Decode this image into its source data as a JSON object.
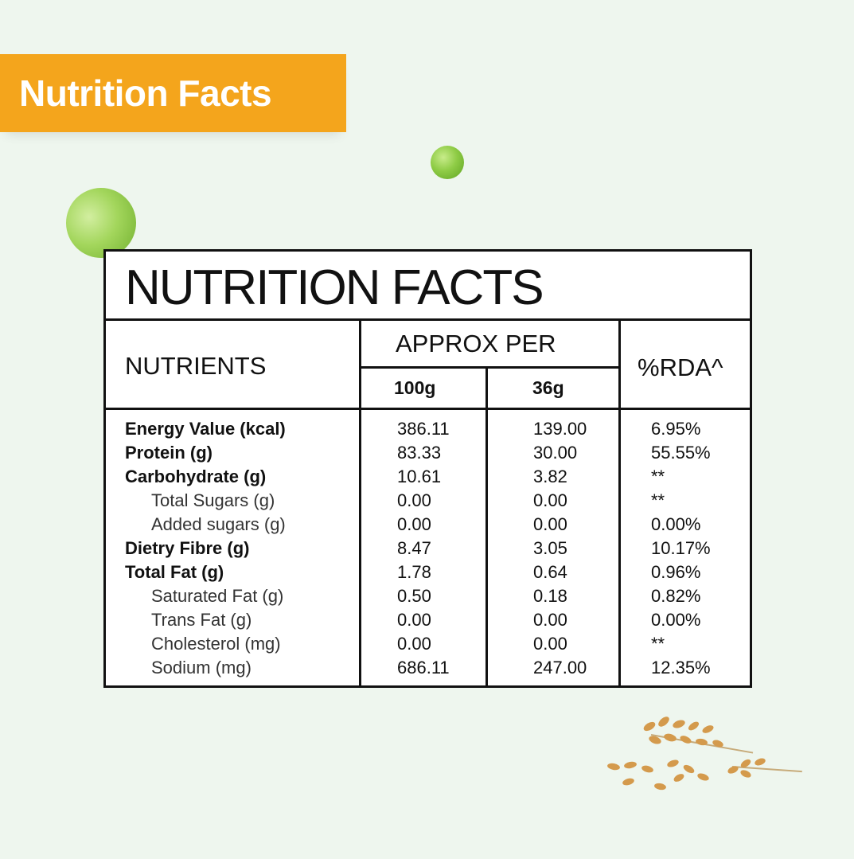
{
  "banner": {
    "title": "Nutrition Facts"
  },
  "table": {
    "heading": "NUTRITION FACTS",
    "col_nutrients": "NUTRIENTS",
    "col_approx": "APPROX PER",
    "col_100g": "100g",
    "col_36g": "36g",
    "col_rda": "%RDA^",
    "rows": [
      {
        "name": "Energy Value (kcal)",
        "per100": "386.11",
        "per36": "139.00",
        "rda": "6.95%"
      },
      {
        "name": "Protein (g)",
        "per100": "83.33",
        "per36": "30.00",
        "rda": "55.55%"
      },
      {
        "name": "Carbohydrate (g)",
        "per100": "10.61",
        "per36": "3.82",
        "rda": "**"
      },
      {
        "name": "Total Sugars (g)",
        "per100": "0.00",
        "per36": "0.00",
        "rda": "**"
      },
      {
        "name": "Added sugars (g)",
        "per100": "0.00",
        "per36": "0.00",
        "rda": "0.00%"
      },
      {
        "name": "Dietry Fibre (g)",
        "per100": "8.47",
        "per36": "3.05",
        "rda": "10.17%"
      },
      {
        "name": "Total Fat (g)",
        "per100": "1.78",
        "per36": "0.64",
        "rda": "0.96%"
      },
      {
        "name": "Saturated Fat (g)",
        "per100": "0.50",
        "per36": "0.18",
        "rda": "0.82%"
      },
      {
        "name": "Trans Fat (g)",
        "per100": "0.00",
        "per36": "0.00",
        "rda": "0.00%"
      },
      {
        "name": "Cholesterol (mg)",
        "per100": "0.00",
        "per36": "0.00",
        "rda": "**"
      },
      {
        "name": "Sodium (mg)",
        "per100": "686.11",
        "per36": "247.00",
        "rda": "12.35%"
      }
    ]
  },
  "decor": {
    "pea_color": "#8fcc46",
    "banner_color": "#f4a51c",
    "background": "#eef6ee"
  }
}
